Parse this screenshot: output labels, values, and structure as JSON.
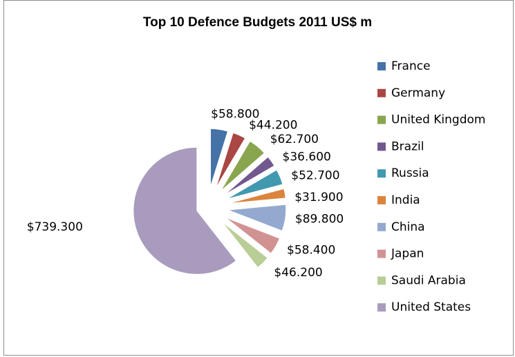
{
  "chart_data": {
    "type": "pie",
    "title": "Top 10 Defence Budgets 2011 US$ m",
    "legend_position": "right",
    "slices": [
      {
        "name": "France",
        "value": 58.8,
        "label": "$58.800",
        "color": "#4572A7"
      },
      {
        "name": "Germany",
        "value": 44.2,
        "label": "$44.200",
        "color": "#AA4643"
      },
      {
        "name": "United Kingdom",
        "value": 62.7,
        "label": "$62.700",
        "color": "#89A54E"
      },
      {
        "name": "Brazil",
        "value": 36.6,
        "label": "$36.600",
        "color": "#71588F"
      },
      {
        "name": "Russia",
        "value": 52.7,
        "label": "$52.700",
        "color": "#4198AF"
      },
      {
        "name": "India",
        "value": 31.9,
        "label": "$31.900",
        "color": "#DB843D"
      },
      {
        "name": "China",
        "value": 89.8,
        "label": "$89.800",
        "color": "#93A9CF"
      },
      {
        "name": "Japan",
        "value": 58.4,
        "label": "$58.400",
        "color": "#D19392"
      },
      {
        "name": "Saudi Arabia",
        "value": 46.2,
        "label": "$46.200",
        "color": "#B9CD96"
      },
      {
        "name": "United States",
        "value": 739.3,
        "label": "$739.300",
        "color": "#A99BBD"
      }
    ]
  }
}
